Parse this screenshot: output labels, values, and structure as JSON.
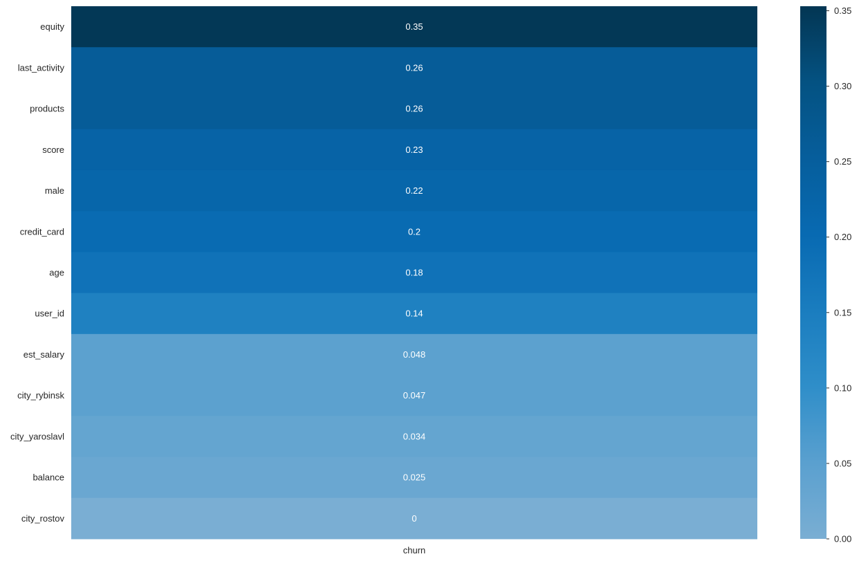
{
  "chart_data": {
    "type": "heatmap",
    "title": "",
    "xlabel": "",
    "ylabel": "",
    "columns": [
      "churn"
    ],
    "rows": [
      "equity",
      "last_activity",
      "products",
      "score",
      "male",
      "credit_card",
      "age",
      "user_id",
      "est_salary",
      "city_rybinsk",
      "city_yaroslavl",
      "balance",
      "city_rostov"
    ],
    "values": [
      0.35,
      0.26,
      0.26,
      0.23,
      0.22,
      0.2,
      0.18,
      0.14,
      0.048,
      0.047,
      0.034,
      0.025,
      0
    ],
    "annotations": [
      "0.35",
      "0.26",
      "0.26",
      "0.23",
      "0.22",
      "0.2",
      "0.18",
      "0.14",
      "0.048",
      "0.047",
      "0.034",
      "0.025",
      "0"
    ],
    "colorbar": {
      "range": [
        0,
        0.353
      ],
      "ticks": [
        0.0,
        0.05,
        0.1,
        0.15,
        0.2,
        0.25,
        0.3,
        0.35
      ],
      "tick_labels": [
        "0.00",
        "0.05",
        "0.10",
        "0.15",
        "0.20",
        "0.25",
        "0.30",
        "0.35"
      ],
      "colors": [
        "#7aaed3",
        "#5aa0cf",
        "#2f8ec9",
        "#1a7dbf",
        "#086ab2",
        "#065e9c",
        "#045282",
        "#033653"
      ]
    }
  }
}
